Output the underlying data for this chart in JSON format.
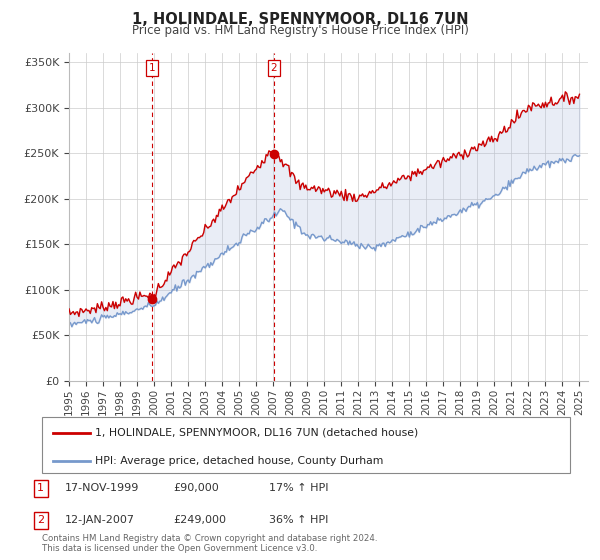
{
  "title": "1, HOLINDALE, SPENNYMOOR, DL16 7UN",
  "subtitle": "Price paid vs. HM Land Registry's House Price Index (HPI)",
  "ylabel_ticks": [
    "£0",
    "£50K",
    "£100K",
    "£150K",
    "£200K",
    "£250K",
    "£300K",
    "£350K"
  ],
  "ytick_values": [
    0,
    50000,
    100000,
    150000,
    200000,
    250000,
    300000,
    350000
  ],
  "ylim": [
    0,
    360000
  ],
  "xlim_start": 1995.0,
  "xlim_end": 2025.5,
  "line1_color": "#cc0000",
  "line2_color": "#7799cc",
  "fill_color": "#aabbdd",
  "vline_color": "#cc0000",
  "background_color": "#ffffff",
  "grid_color": "#cccccc",
  "legend_entry1": "1, HOLINDALE, SPENNYMOOR, DL16 7UN (detached house)",
  "legend_entry2": "HPI: Average price, detached house, County Durham",
  "sale1_num": "1",
  "sale1_date": "17-NOV-1999",
  "sale1_price": "£90,000",
  "sale1_hpi": "17% ↑ HPI",
  "sale1_x": 1999.88,
  "sale1_y": 90000,
  "sale2_num": "2",
  "sale2_date": "12-JAN-2007",
  "sale2_price": "£249,000",
  "sale2_hpi": "36% ↑ HPI",
  "sale2_x": 2007.04,
  "sale2_y": 249000,
  "footnote": "Contains HM Land Registry data © Crown copyright and database right 2024.\nThis data is licensed under the Open Government Licence v3.0.",
  "xtick_years": [
    1995,
    1996,
    1997,
    1998,
    1999,
    2000,
    2001,
    2002,
    2003,
    2004,
    2005,
    2006,
    2007,
    2008,
    2009,
    2010,
    2011,
    2012,
    2013,
    2014,
    2015,
    2016,
    2017,
    2018,
    2019,
    2020,
    2021,
    2022,
    2023,
    2024,
    2025
  ]
}
